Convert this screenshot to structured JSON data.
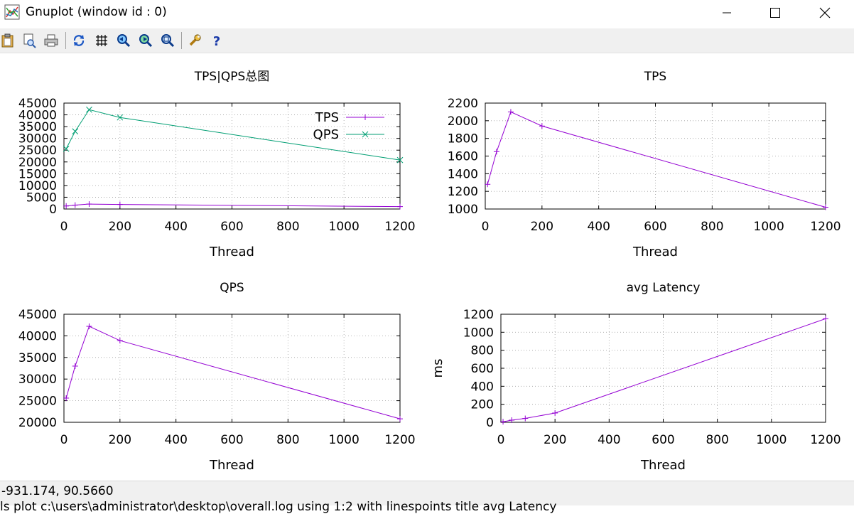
{
  "window": {
    "title": "Gnuplot (window id : 0)"
  },
  "toolbar": {
    "buttons": [
      {
        "icon": "clipboard-icon"
      },
      {
        "icon": "print-preview-icon"
      },
      {
        "icon": "printer-icon"
      },
      {
        "icon": "replot-icon"
      },
      {
        "icon": "grid-icon"
      },
      {
        "icon": "zoom-previous-icon"
      },
      {
        "icon": "zoom-next-icon"
      },
      {
        "icon": "unzoom-icon"
      },
      {
        "icon": "options-wrench-icon"
      },
      {
        "icon": "help-icon"
      }
    ]
  },
  "status": {
    "coords": "-931.174,  90.5660",
    "command": "ls plot  c:\\users\\administrator\\desktop\\overall.log  using 1:2  with linespoints title  avg Latency"
  },
  "colors": {
    "tps": "#9400d3",
    "qps": "#009e73",
    "grid": "#a0a0a0"
  },
  "chart_data": [
    {
      "type": "line",
      "title": "TPS|QPS总图",
      "xlabel": "Thread",
      "ylabel": "",
      "xlim": [
        0,
        1200
      ],
      "ylim": [
        0,
        45000
      ],
      "xticks": [
        0,
        200,
        400,
        600,
        800,
        1000,
        1200
      ],
      "yticks": [
        0,
        5000,
        10000,
        15000,
        20000,
        25000,
        30000,
        35000,
        40000,
        45000
      ],
      "x": [
        8,
        40,
        90,
        200,
        1200
      ],
      "legend": "top-right",
      "grid": true,
      "series": [
        {
          "name": "TPS",
          "values": [
            1280,
            1650,
            2100,
            1940,
            1020
          ],
          "marker": "plus"
        },
        {
          "name": "QPS",
          "values": [
            25600,
            33000,
            42200,
            38900,
            20800
          ],
          "marker": "cross"
        }
      ]
    },
    {
      "type": "line",
      "title": "TPS",
      "xlabel": "Thread",
      "ylabel": "",
      "xlim": [
        0,
        1200
      ],
      "ylim": [
        1000,
        2200
      ],
      "xticks": [
        0,
        200,
        400,
        600,
        800,
        1000,
        1200
      ],
      "yticks": [
        1000,
        1200,
        1400,
        1600,
        1800,
        2000,
        2200
      ],
      "x": [
        8,
        40,
        90,
        200,
        1200
      ],
      "grid": true,
      "series": [
        {
          "values": [
            1280,
            1650,
            2100,
            1940,
            1020
          ],
          "marker": "plus"
        }
      ]
    },
    {
      "type": "line",
      "title": "QPS",
      "xlabel": "Thread",
      "ylabel": "",
      "xlim": [
        0,
        1200
      ],
      "ylim": [
        20000,
        45000
      ],
      "xticks": [
        0,
        200,
        400,
        600,
        800,
        1000,
        1200
      ],
      "yticks": [
        20000,
        25000,
        30000,
        35000,
        40000,
        45000
      ],
      "x": [
        8,
        40,
        90,
        200,
        1200
      ],
      "grid": true,
      "series": [
        {
          "values": [
            25600,
            33000,
            42200,
            38900,
            20800
          ],
          "marker": "plus"
        }
      ]
    },
    {
      "type": "line",
      "title": "avg Latency",
      "xlabel": "Thread",
      "ylabel": "ms",
      "xlim": [
        0,
        1200
      ],
      "ylim": [
        0,
        1200
      ],
      "xticks": [
        0,
        200,
        400,
        600,
        800,
        1000,
        1200
      ],
      "yticks": [
        0,
        200,
        400,
        600,
        800,
        1000,
        1200
      ],
      "x": [
        8,
        40,
        90,
        200,
        1200
      ],
      "grid": true,
      "series": [
        {
          "values": [
            6,
            24,
            43,
            103,
            1150
          ],
          "marker": "plus"
        }
      ]
    }
  ]
}
